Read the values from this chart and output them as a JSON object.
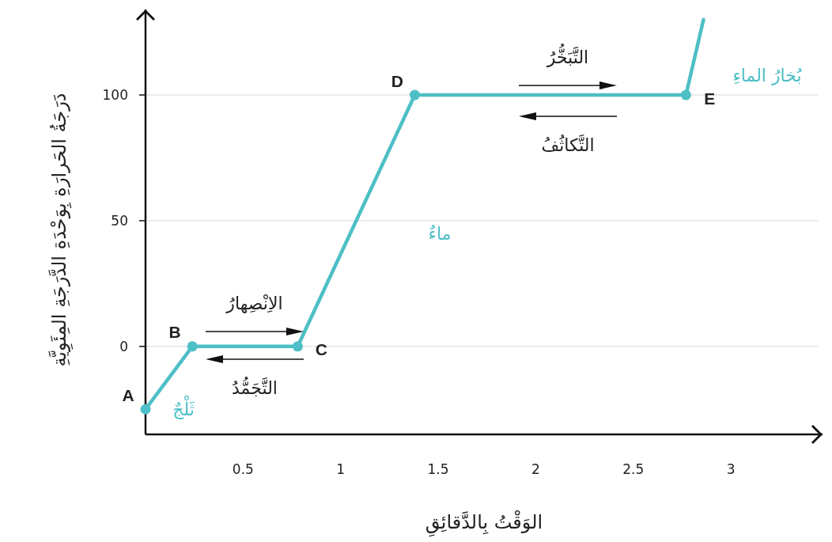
{
  "chart_data": {
    "type": "line",
    "xlabel": "الوَقْتُ بِالدَّقائِقِ",
    "ylabel": "دَرَجَةُ الحَرارَةِ بِوَحْدَةِ الدَّرَجَةِ المِئَوِيَّةِ",
    "x": [
      0,
      0.24,
      0.78,
      1.38,
      2.77,
      2.86
    ],
    "series": [
      {
        "color": "#4dbfc6",
        "values": [
          -25,
          0,
          0,
          100,
          100,
          130
        ]
      },
      {
        "type": "scatter",
        "color": "#4dbfc6",
        "x": [
          0,
          0.24,
          0.78,
          1.38,
          2.77
        ],
        "values": [
          -25,
          0,
          0,
          100,
          100
        ]
      }
    ],
    "xlim": [
      0,
      3.47
    ],
    "ylim": [
      -35,
      134
    ],
    "xticks": [
      0.5,
      1,
      1.5,
      2,
      2.5,
      3
    ],
    "yticks": [
      0,
      50,
      100
    ],
    "grid": "y",
    "line_style": "solid",
    "annotations": [
      {
        "text": "A",
        "x": 0,
        "y": -25
      },
      {
        "text": "B",
        "x": 0.24,
        "y": 0
      },
      {
        "text": "C",
        "x": 0.78,
        "y": 0
      },
      {
        "text": "D",
        "x": 1.38,
        "y": 100
      },
      {
        "text": "E",
        "x": 2.77,
        "y": 100
      },
      "الاِنْصِهارُ",
      "التَّجَمُّدُ",
      "التَّبَخُّرُ",
      "التَّكاثُفُ",
      "ثَلْجٌ",
      "ماءٌ",
      "بُخارُ الماءِ"
    ]
  }
}
